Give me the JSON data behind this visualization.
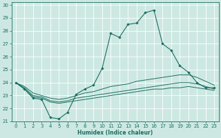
{
  "xlabel": "Humidex (Indice chaleur)",
  "xlim": [
    -0.5,
    23.5
  ],
  "ylim": [
    21,
    30.2
  ],
  "yticks": [
    21,
    22,
    23,
    24,
    25,
    26,
    27,
    28,
    29,
    30
  ],
  "xticks": [
    0,
    1,
    2,
    3,
    4,
    5,
    6,
    7,
    8,
    9,
    10,
    11,
    12,
    13,
    14,
    15,
    16,
    17,
    18,
    19,
    20,
    21,
    22,
    23
  ],
  "bg_color": "#cde8e2",
  "line_color": "#1a6e62",
  "grid_color": "#ffffff",
  "main_line": {
    "x": [
      0,
      1,
      2,
      3,
      4,
      5,
      6,
      7,
      8,
      9,
      10,
      11,
      12,
      13,
      14,
      15,
      16,
      17,
      18,
      19,
      20,
      21,
      22,
      23
    ],
    "y": [
      24.0,
      23.5,
      22.8,
      22.7,
      21.3,
      21.2,
      21.7,
      23.1,
      23.5,
      23.8,
      25.1,
      27.8,
      27.5,
      28.5,
      28.6,
      29.4,
      29.6,
      27.0,
      26.5,
      25.3,
      24.8,
      24.0,
      23.6,
      23.6
    ]
  },
  "line2": {
    "x": [
      0,
      1,
      2,
      3,
      4,
      5,
      6,
      7,
      8,
      9,
      10,
      11,
      12,
      13,
      14,
      15,
      16,
      17,
      18,
      19,
      20,
      21,
      22,
      23
    ],
    "y": [
      24.0,
      23.7,
      23.2,
      23.0,
      22.8,
      22.7,
      22.8,
      23.0,
      23.2,
      23.3,
      23.5,
      23.7,
      23.8,
      23.9,
      24.1,
      24.2,
      24.3,
      24.4,
      24.5,
      24.6,
      24.6,
      24.4,
      24.1,
      23.8
    ]
  },
  "line3": {
    "x": [
      0,
      1,
      2,
      3,
      4,
      5,
      6,
      7,
      8,
      9,
      10,
      11,
      12,
      13,
      14,
      15,
      16,
      17,
      18,
      19,
      20,
      21,
      22,
      23
    ],
    "y": [
      24.0,
      23.6,
      23.0,
      22.9,
      22.6,
      22.5,
      22.6,
      22.8,
      22.9,
      23.0,
      23.1,
      23.2,
      23.3,
      23.4,
      23.5,
      23.6,
      23.7,
      23.8,
      23.9,
      24.0,
      24.0,
      23.9,
      23.7,
      23.5
    ]
  },
  "line4": {
    "x": [
      0,
      1,
      2,
      3,
      4,
      5,
      6,
      7,
      8,
      9,
      10,
      11,
      12,
      13,
      14,
      15,
      16,
      17,
      18,
      19,
      20,
      21,
      22,
      23
    ],
    "y": [
      24.0,
      23.5,
      22.9,
      22.8,
      22.5,
      22.4,
      22.5,
      22.6,
      22.7,
      22.8,
      22.9,
      23.0,
      23.1,
      23.2,
      23.3,
      23.4,
      23.5,
      23.5,
      23.6,
      23.6,
      23.7,
      23.6,
      23.5,
      23.4
    ]
  }
}
